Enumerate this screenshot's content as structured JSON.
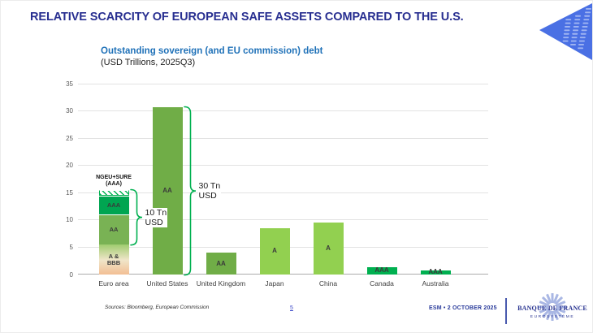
{
  "slide_title": "RELATIVE SCARCITY OF EUROPEAN SAFE ASSETS COMPARED TO THE U.S.",
  "colors": {
    "title_blue": "#272E90",
    "chart_title_blue": "#1F71B8",
    "bracket_green": "#00B050",
    "us_uk_green": "#70AD47",
    "japan_china_green": "#92D050",
    "aaa_green": "#00B050",
    "euro_aa_green": "#79B254",
    "esm_logo_blue": "#4A70E4"
  },
  "chart_data": {
    "type": "bar",
    "title": "Outstanding sovereign (and EU commission) debt",
    "subtitle": "(USD Trillions, 2025Q3)",
    "unit": "USD Trillions",
    "ylim": [
      0,
      35
    ],
    "ytick_step": 5,
    "grid": true,
    "categories": [
      "Euro area",
      "United States",
      "United Kingdom",
      "Japan",
      "China",
      "Canada",
      "Australia"
    ],
    "bars": [
      {
        "category": "Euro area",
        "total": 15.5,
        "segments": [
          {
            "label": "A & BBB",
            "value": 5.5,
            "fill": "gradient-peach"
          },
          {
            "label": "AA",
            "value": 5.5,
            "color": "#79B254"
          },
          {
            "label": "AAA",
            "value": 3.5,
            "color": "#00A551"
          },
          {
            "label": "NGEU+SURE (AAA)",
            "value": 1.0,
            "fill": "hatch-green",
            "show_label": false
          }
        ]
      },
      {
        "category": "United States",
        "value": 30.7,
        "rating_label": "AA",
        "color": "#70AD47"
      },
      {
        "category": "United Kingdom",
        "value": 4.0,
        "rating_label": "AA",
        "color": "#70AD47"
      },
      {
        "category": "Japan",
        "value": 8.5,
        "rating_label": "A",
        "color": "#92D050"
      },
      {
        "category": "China",
        "value": 9.5,
        "rating_label": "A",
        "color": "#92D050"
      },
      {
        "category": "Canada",
        "value": 1.4,
        "rating_label": "AAA",
        "color": "#00B050"
      },
      {
        "category": "Australia",
        "value": 0.8,
        "rating_label": "AAA",
        "color": "#00B050"
      }
    ],
    "annotations": [
      {
        "type": "brace",
        "bar_index": 0,
        "span": [
          5.5,
          15.5
        ],
        "label_lines": [
          "10 Tn",
          "USD"
        ]
      },
      {
        "type": "brace",
        "bar_index": 1,
        "span": [
          0,
          30.7
        ],
        "label_lines": [
          "30 Tn",
          "USD"
        ]
      },
      {
        "type": "callout",
        "bar_index": 0,
        "above_value": 15.5,
        "label_lines": [
          "NGEU+SURE",
          "(AAA)"
        ]
      }
    ]
  },
  "footer": {
    "sources": "Sources: Bloomberg, European Commission",
    "page_number": "5",
    "event_date": "ESM • 2 OCTOBER 2025",
    "bank_logo_line1": "BANQUE DE FRANCE",
    "bank_logo_line2": "EUROSYSTÈME"
  }
}
